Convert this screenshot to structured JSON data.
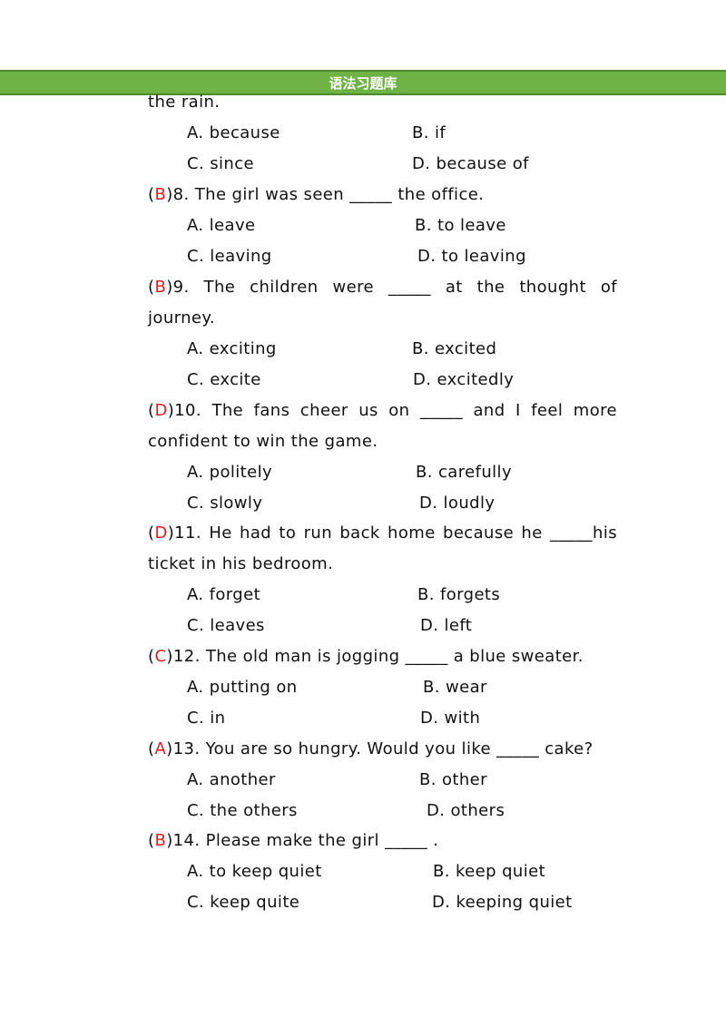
{
  "header": {
    "title": "语法习题库"
  },
  "top_fragment": "the rain.",
  "q7_options": {
    "a": "A. because",
    "b": "B. if",
    "c": "C. since",
    "d": "D. because of"
  },
  "questions": [
    {
      "answer": "B",
      "number": "8",
      "stem_lines": [
        "The girl was seen _____ the office."
      ],
      "options": {
        "a": "A. leave",
        "b": "B. to leave",
        "c": "C. leaving",
        "d": "D. to leaving"
      }
    },
    {
      "answer": "B",
      "number": "9",
      "stem_lines": [
        "The children were _____ at the thought of",
        "journey."
      ],
      "options": {
        "a": "A. exciting",
        "b": "B. excited",
        "c": "C. excite",
        "d": "D. excitedly"
      }
    },
    {
      "answer": "D",
      "number": "10",
      "stem_lines": [
        "The fans cheer us on _____ and I feel more",
        "confident to win the game."
      ],
      "options": {
        "a": "A. politely",
        "b": "B. carefully",
        "c": "C. slowly",
        "d": "D. loudly"
      }
    },
    {
      "answer": "D",
      "number": "11",
      "stem_lines": [
        "He had to run back home because he _____his",
        "ticket in his bedroom."
      ],
      "options": {
        "a": "A. forget",
        "b": "B. forgets",
        "c": "C. leaves",
        "d": "D. left"
      }
    },
    {
      "answer": "C",
      "number": "12",
      "stem_lines": [
        "The old man is jogging _____ a blue sweater."
      ],
      "options": {
        "a": "A. putting on",
        "b": "B. wear",
        "c": "C. in",
        "d": "D. with"
      }
    },
    {
      "answer": "A",
      "number": "13",
      "stem_lines": [
        "You are so hungry. Would you like _____ cake?"
      ],
      "options": {
        "a": "A. another",
        "b": "B. other",
        "c": "C. the others",
        "d": "D. others"
      }
    },
    {
      "answer": "B",
      "number": "14",
      "stem_lines": [
        "Please make the girl _____ ."
      ],
      "options": {
        "a": "A. to keep quiet",
        "b": "B. keep quiet",
        "c": "C. keep quite",
        "d": "D. keeping quiet"
      }
    }
  ],
  "colors": {
    "banner": "#6fb345",
    "answer": "#e02020",
    "text": "#111111"
  }
}
